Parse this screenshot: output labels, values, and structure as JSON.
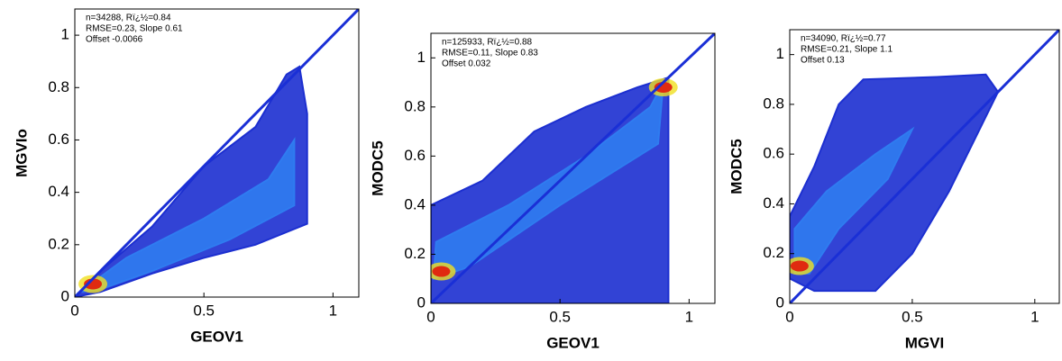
{
  "chart_data": [
    {
      "type": "density",
      "annotation": [
        "n=34288, Rï¿½=0.84",
        "RMSE=0.23, Slope  0.61",
        "Offset -0.0066"
      ],
      "xlabel": "GEOV1",
      "ylabel": "MGVIo",
      "xlim": [
        0,
        1.1
      ],
      "ylim": [
        0,
        1.1
      ],
      "xticks": [
        0,
        0.5,
        1
      ],
      "yticks": [
        0,
        0.2,
        0.4,
        0.6,
        0.8,
        1
      ],
      "regions": [
        {
          "color": "#1c2fd0",
          "x": [
            0,
            0.1,
            0.3,
            0.5,
            0.7,
            0.82,
            0.87,
            0.9,
            0.9,
            0.7,
            0.5,
            0.3,
            0.1
          ],
          "y": [
            0,
            0.1,
            0.27,
            0.5,
            0.65,
            0.85,
            0.88,
            0.7,
            0.28,
            0.2,
            0.15,
            0.09,
            0.02
          ]
        },
        {
          "color": "#2f7cf0",
          "x": [
            0.02,
            0.2,
            0.5,
            0.75,
            0.85,
            0.85,
            0.6,
            0.3,
            0.1
          ],
          "y": [
            0.02,
            0.15,
            0.3,
            0.45,
            0.6,
            0.35,
            0.22,
            0.1,
            0.03
          ]
        }
      ],
      "hotspots": {
        "color": "#e02a10",
        "x": [
          0.07
        ],
        "y": [
          0.05
        ]
      },
      "reference": {
        "color": "#1a2fd6",
        "x": [
          0,
          1.1
        ],
        "y": [
          0,
          1.1
        ]
      }
    },
    {
      "type": "density",
      "annotation": [
        "n=125933, Rï¿½=0.88",
        "RMSE=0.11, Slope  0.83",
        "Offset 0.032"
      ],
      "xlabel": "GEOV1",
      "ylabel": "MODC5",
      "xlim": [
        0,
        1.1
      ],
      "ylim": [
        0,
        1.1
      ],
      "xticks": [
        0,
        0.5,
        1
      ],
      "yticks": [
        0,
        0.2,
        0.4,
        0.6,
        0.8,
        1
      ],
      "regions": [
        {
          "color": "#1c2fd0",
          "x": [
            0,
            0,
            0.2,
            0.4,
            0.6,
            0.8,
            0.92,
            0.92,
            0.5,
            0.1
          ],
          "y": [
            0,
            0.4,
            0.5,
            0.7,
            0.8,
            0.88,
            0.92,
            0,
            0,
            0
          ]
        },
        {
          "color": "#2f7cf0",
          "x": [
            0.01,
            0.02,
            0.3,
            0.6,
            0.85,
            0.9,
            0.88,
            0.5,
            0.15
          ],
          "y": [
            0.1,
            0.25,
            0.4,
            0.6,
            0.8,
            0.9,
            0.65,
            0.4,
            0.15
          ]
        }
      ],
      "hotspots": {
        "color": "#e02a10",
        "x": [
          0.04,
          0.9
        ],
        "y": [
          0.13,
          0.88
        ]
      },
      "reference": {
        "color": "#1a2fd6",
        "x": [
          0,
          1.1
        ],
        "y": [
          0,
          1.1
        ]
      }
    },
    {
      "type": "density",
      "annotation": [
        "n=34090, Rï¿½=0.77",
        "RMSE=0.21, Slope  1.1",
        "Offset 0.13"
      ],
      "xlabel": "MGVI",
      "ylabel": "MODC5",
      "xlim": [
        0,
        1.1
      ],
      "ylim": [
        0,
        1.1
      ],
      "xticks": [
        0,
        0.5,
        1
      ],
      "yticks": [
        0,
        0.2,
        0.4,
        0.6,
        0.8,
        1
      ],
      "regions": [
        {
          "color": "#1c2fd0",
          "x": [
            0,
            0,
            0.1,
            0.2,
            0.3,
            0.6,
            0.8,
            0.85,
            0.8,
            0.65,
            0.5,
            0.35,
            0.1
          ],
          "y": [
            0.1,
            0.35,
            0.55,
            0.8,
            0.9,
            0.91,
            0.92,
            0.85,
            0.75,
            0.45,
            0.2,
            0.05,
            0.05
          ]
        },
        {
          "color": "#2f7cf0",
          "x": [
            0.02,
            0.02,
            0.15,
            0.35,
            0.5,
            0.4,
            0.2,
            0.08
          ],
          "y": [
            0.12,
            0.3,
            0.45,
            0.6,
            0.7,
            0.5,
            0.3,
            0.12
          ]
        }
      ],
      "hotspots": {
        "color": "#e02a10",
        "x": [
          0.04
        ],
        "y": [
          0.15
        ]
      },
      "reference": {
        "color": "#1a2fd6",
        "x": [
          0,
          1.1
        ],
        "y": [
          0,
          1.1
        ]
      }
    }
  ]
}
